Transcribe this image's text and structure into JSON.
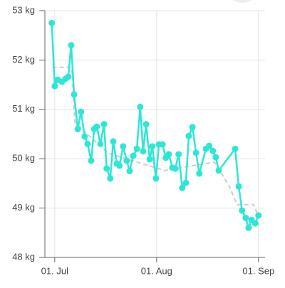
{
  "chart_data": {
    "type": "line",
    "x": [
      -0.9,
      0,
      0.9,
      2.2,
      3.3,
      4.1,
      5,
      5.9,
      7,
      8,
      9.1,
      10,
      11.1,
      12,
      12.8,
      13.9,
      15,
      15.8,
      16.9,
      17.8,
      18.9,
      19.7,
      20.8,
      21.9,
      22.8,
      23.9,
      25,
      26,
      26.9,
      27.8,
      28.9,
      29.7,
      30.8,
      31.7,
      32.8,
      33.8,
      34.7,
      35.8,
      36.7,
      37.7,
      38.8,
      39.9,
      40.8,
      41.9,
      43,
      44,
      46,
      47,
      48.1,
      49,
      49.9,
      54.9,
      56,
      57,
      58.1,
      59,
      59.9,
      61,
      62
    ],
    "series": [
      {
        "color": "#2ee6d6",
        "values": [
          52.75,
          51.47,
          51.6,
          51.56,
          51.62,
          51.66,
          52.3,
          51.3,
          50.6,
          50.95,
          50.45,
          50.3,
          49.96,
          50.6,
          50.65,
          50.3,
          50.7,
          49.8,
          49.6,
          50.35,
          49.9,
          49.86,
          50.25,
          49.96,
          49.75,
          50.06,
          50.2,
          51.05,
          50.15,
          50.7,
          49.99,
          50.25,
          49.6,
          50.29,
          50.29,
          50.02,
          50.09,
          49.82,
          49.8,
          50.09,
          49.41,
          49.51,
          50.46,
          50.64,
          50.12,
          49.7,
          50.2,
          50.26,
          50.16,
          50.03,
          49.76,
          50.2,
          49.44,
          48.95,
          48.8,
          48.6,
          48.76,
          48.69,
          48.85
        ]
      }
    ],
    "trend": {
      "color": "#cccccc",
      "x": [
        -0.7,
        5.2,
        6.1,
        16,
        33.4,
        48.6,
        52.9,
        55.5,
        60.5,
        61.6
      ],
      "values": [
        51.85,
        51.85,
        50.74,
        50.12,
        49.76,
        49.93,
        49.47,
        49.07,
        49.07,
        48.9
      ]
    },
    "xlim": [
      -3,
      64
    ],
    "xticks": [
      {
        "value": 0,
        "label": "01. Jul"
      },
      {
        "value": 31,
        "label": "01. Aug"
      },
      {
        "value": 62,
        "label": "01. Sep"
      }
    ],
    "ylim": [
      48,
      53
    ],
    "yticks": [
      {
        "value": 48,
        "label": "48 kg"
      },
      {
        "value": 49,
        "label": "49 kg"
      },
      {
        "value": 50,
        "label": "50 kg"
      },
      {
        "value": 51,
        "label": "51 kg"
      },
      {
        "value": 52,
        "label": "52 kg"
      },
      {
        "value": 53,
        "label": "53 kg"
      }
    ],
    "grid": true
  }
}
